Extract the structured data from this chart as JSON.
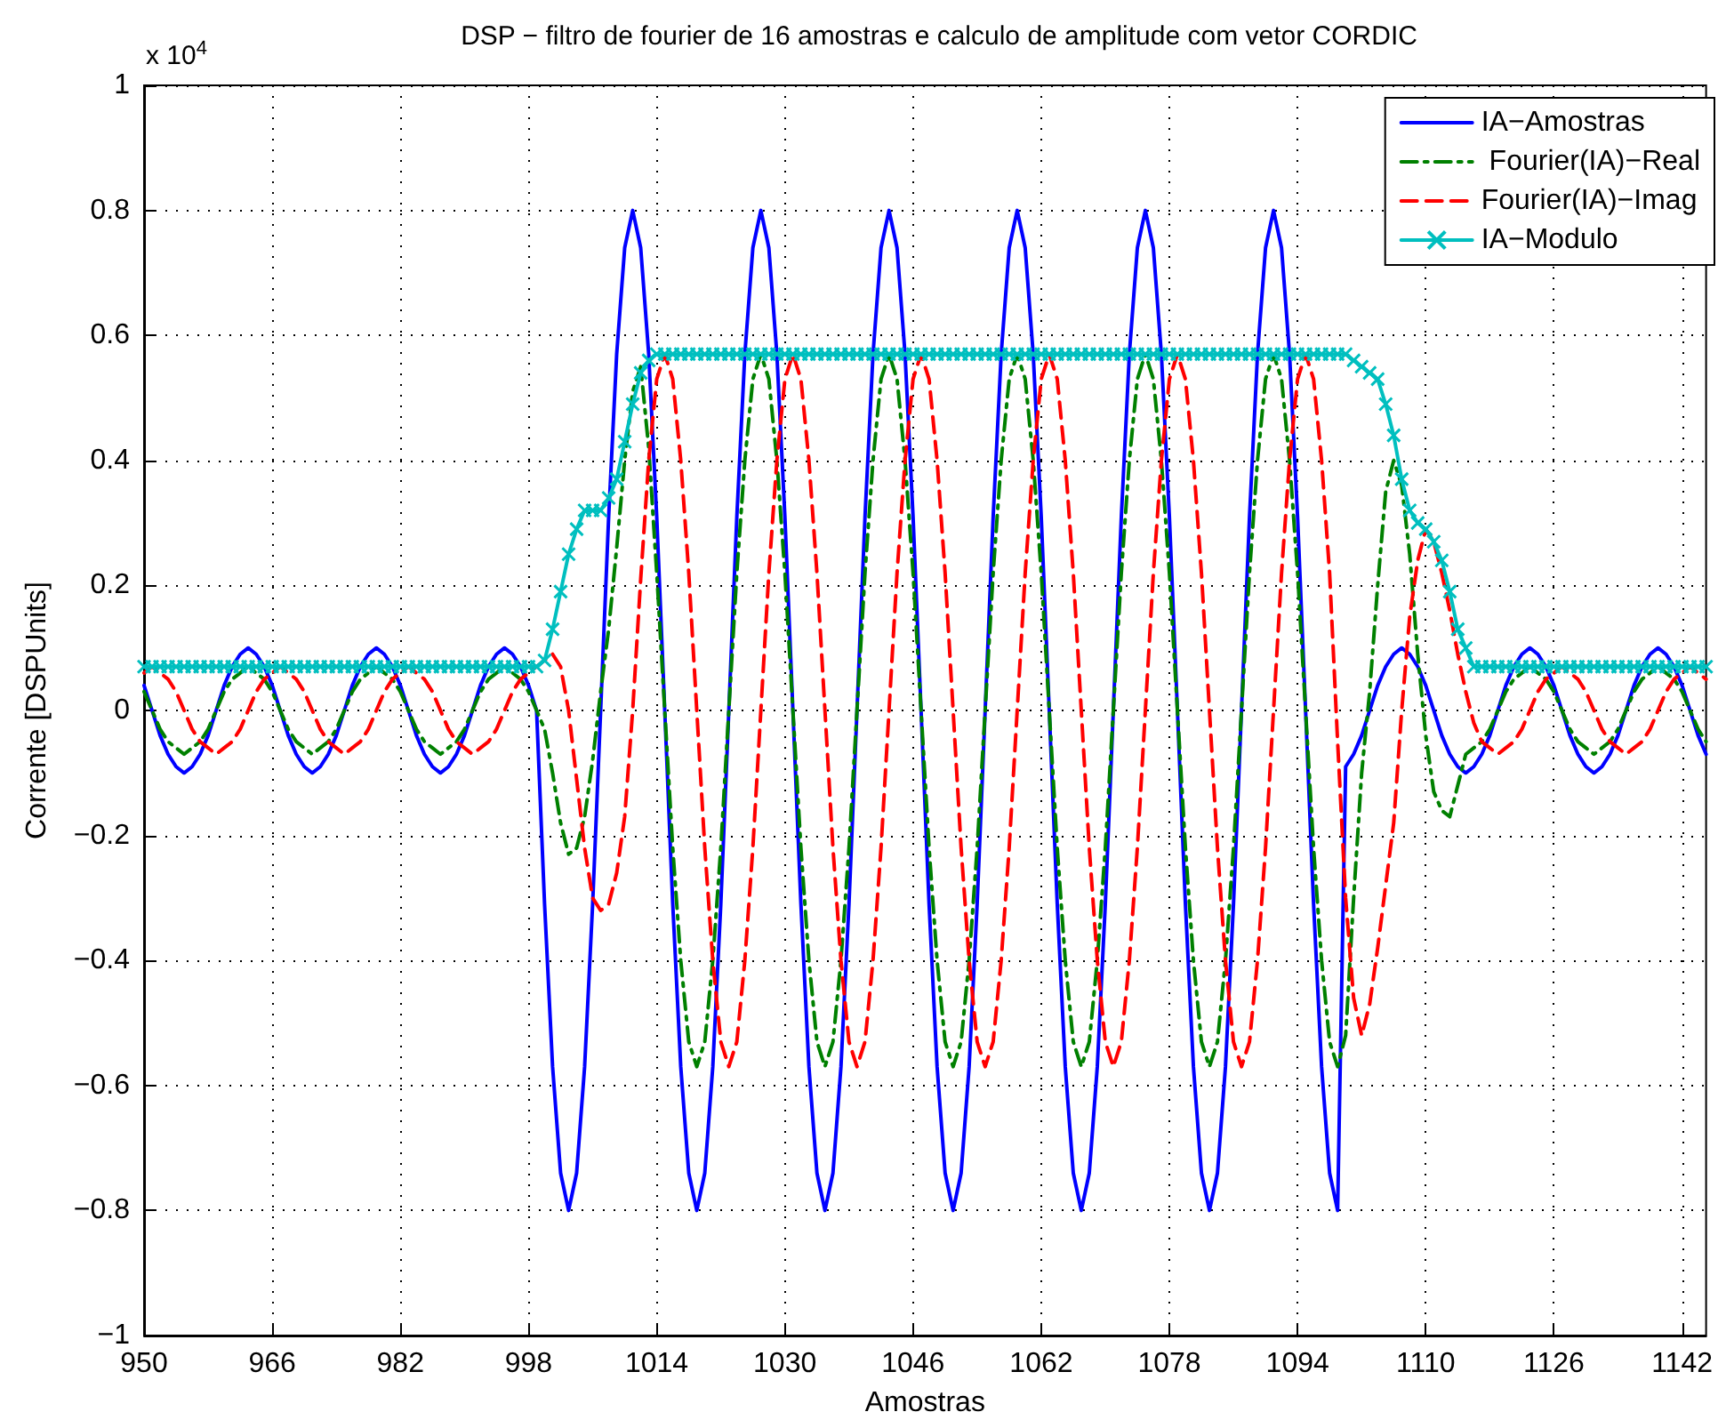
{
  "chart_data": {
    "type": "line",
    "title": "DSP − filtro de fourier de 16 amostras e calculo de amplitude com vetor CORDIC",
    "xlabel": "Amostras",
    "ylabel": "Corrente [DSPUnits]",
    "annotations": [
      "x 10$^{4}$"
    ],
    "xlim": [
      950,
      1145
    ],
    "xticks": [
      950,
      966,
      982,
      998,
      1014,
      1030,
      1046,
      1062,
      1078,
      1094,
      1110,
      1126,
      1142
    ],
    "ylim": [
      -1,
      1
    ],
    "yticks": [
      -1,
      -0.8,
      -0.6,
      -0.4,
      -0.2,
      0,
      0.2,
      0.4,
      0.6,
      0.8,
      1
    ],
    "grid": true,
    "legend": "top right",
    "x": [
      950,
      951,
      952,
      953,
      954,
      955,
      956,
      957,
      958,
      959,
      960,
      961,
      962,
      963,
      964,
      965,
      966,
      967,
      968,
      969,
      970,
      971,
      972,
      973,
      974,
      975,
      976,
      977,
      978,
      979,
      980,
      981,
      982,
      983,
      984,
      985,
      986,
      987,
      988,
      989,
      990,
      991,
      992,
      993,
      994,
      995,
      996,
      997,
      998,
      999,
      1000,
      1001,
      1002,
      1003,
      1004,
      1005,
      1006,
      1007,
      1008,
      1009,
      1010,
      1011,
      1012,
      1013,
      1014,
      1015,
      1016,
      1017,
      1018,
      1019,
      1020,
      1021,
      1022,
      1023,
      1024,
      1025,
      1026,
      1027,
      1028,
      1029,
      1030,
      1031,
      1032,
      1033,
      1034,
      1035,
      1036,
      1037,
      1038,
      1039,
      1040,
      1041,
      1042,
      1043,
      1044,
      1045,
      1046,
      1047,
      1048,
      1049,
      1050,
      1051,
      1052,
      1053,
      1054,
      1055,
      1056,
      1057,
      1058,
      1059,
      1060,
      1061,
      1062,
      1063,
      1064,
      1065,
      1066,
      1067,
      1068,
      1069,
      1070,
      1071,
      1072,
      1073,
      1074,
      1075,
      1076,
      1077,
      1078,
      1079,
      1080,
      1081,
      1082,
      1083,
      1084,
      1085,
      1086,
      1087,
      1088,
      1089,
      1090,
      1091,
      1092,
      1093,
      1094,
      1095,
      1096,
      1097,
      1098,
      1099,
      1100,
      1101,
      1102,
      1103,
      1104,
      1105,
      1106,
      1107,
      1108,
      1109,
      1110,
      1111,
      1112,
      1113,
      1114,
      1115,
      1116,
      1117,
      1118,
      1119,
      1120,
      1121,
      1122,
      1123,
      1124,
      1125,
      1126,
      1127,
      1128,
      1129,
      1130,
      1131,
      1132,
      1133,
      1134,
      1135,
      1136,
      1137,
      1138,
      1139,
      1140,
      1141,
      1142,
      1143,
      1144,
      1145
    ],
    "series": [
      {
        "name": "IA−Amostras",
        "color": "#0000ff",
        "line_style": "solid",
        "marker": "none",
        "values": [
          0.04,
          0,
          -0.04,
          -0.07,
          -0.09,
          -0.1,
          -0.09,
          -0.07,
          -0.04,
          0,
          0.04,
          0.07,
          0.09,
          0.1,
          0.09,
          0.07,
          0.04,
          0,
          -0.04,
          -0.07,
          -0.09,
          -0.1,
          -0.09,
          -0.07,
          -0.04,
          0,
          0.04,
          0.07,
          0.09,
          0.1,
          0.09,
          0.07,
          0.04,
          0,
          -0.04,
          -0.07,
          -0.09,
          -0.1,
          -0.09,
          -0.07,
          -0.04,
          0,
          0.04,
          0.07,
          0.09,
          0.1,
          0.09,
          0.07,
          0.04,
          0,
          -0.31,
          -0.57,
          -0.74,
          -0.8,
          -0.74,
          -0.57,
          -0.31,
          0,
          0.31,
          0.57,
          0.74,
          0.8,
          0.74,
          0.57,
          0.31,
          0,
          -0.31,
          -0.57,
          -0.74,
          -0.8,
          -0.74,
          -0.57,
          -0.31,
          0,
          0.31,
          0.57,
          0.74,
          0.8,
          0.74,
          0.57,
          0.31,
          0,
          -0.31,
          -0.57,
          -0.74,
          -0.8,
          -0.74,
          -0.57,
          -0.31,
          0,
          0.31,
          0.57,
          0.74,
          0.8,
          0.74,
          0.57,
          0.31,
          0,
          -0.31,
          -0.57,
          -0.74,
          -0.8,
          -0.74,
          -0.57,
          -0.31,
          0,
          0.31,
          0.57,
          0.74,
          0.8,
          0.74,
          0.57,
          0.31,
          0,
          -0.31,
          -0.57,
          -0.74,
          -0.8,
          -0.74,
          -0.57,
          -0.31,
          0,
          0.31,
          0.57,
          0.74,
          0.8,
          0.74,
          0.57,
          0.31,
          0,
          -0.31,
          -0.57,
          -0.74,
          -0.8,
          -0.74,
          -0.57,
          -0.31,
          0,
          0.31,
          0.57,
          0.74,
          0.8,
          0.74,
          0.57,
          0.31,
          0,
          -0.31,
          -0.57,
          -0.74,
          -0.8,
          -0.09,
          -0.07,
          -0.04,
          0,
          0.04,
          0.07,
          0.09,
          0.1,
          0.09,
          0.07,
          0.04,
          0,
          -0.04,
          -0.07,
          -0.09,
          -0.1,
          -0.09,
          -0.07,
          -0.04,
          0,
          0.04,
          0.07,
          0.09,
          0.1,
          0.09,
          0.07,
          0.04,
          0,
          -0.04,
          -0.07,
          -0.09,
          -0.1,
          -0.09,
          -0.07,
          -0.04,
          0,
          0.04,
          0.07,
          0.09,
          0.1,
          0.09,
          0.07,
          0.04,
          0,
          -0.04,
          -0.07
        ]
      },
      {
        "name": " Fourier(IA)−Real",
        "color": "#008000",
        "line_style": "dashdot",
        "marker": "none",
        "values": [
          0.03,
          0,
          -0.03,
          -0.05,
          -0.06,
          -0.07,
          -0.06,
          -0.05,
          -0.03,
          0,
          0.03,
          0.05,
          0.06,
          0.07,
          0.06,
          0.05,
          0.03,
          0,
          -0.03,
          -0.05,
          -0.06,
          -0.07,
          -0.06,
          -0.05,
          -0.03,
          0,
          0.03,
          0.05,
          0.06,
          0.07,
          0.06,
          0.05,
          0.03,
          0,
          -0.03,
          -0.05,
          -0.06,
          -0.07,
          -0.06,
          -0.05,
          -0.03,
          0,
          0.03,
          0.05,
          0.06,
          0.07,
          0.06,
          0.05,
          0.03,
          0,
          -0.03,
          -0.1,
          -0.18,
          -0.23,
          -0.22,
          -0.17,
          -0.08,
          0.03,
          0.13,
          0.26,
          0.4,
          0.51,
          0.55,
          0.42,
          0.22,
          0,
          -0.22,
          -0.4,
          -0.53,
          -0.57,
          -0.53,
          -0.4,
          -0.22,
          0,
          0.22,
          0.4,
          0.53,
          0.57,
          0.53,
          0.4,
          0.22,
          0,
          -0.22,
          -0.4,
          -0.53,
          -0.57,
          -0.53,
          -0.4,
          -0.22,
          0,
          0.22,
          0.4,
          0.53,
          0.57,
          0.53,
          0.4,
          0.22,
          0,
          -0.22,
          -0.4,
          -0.53,
          -0.57,
          -0.53,
          -0.4,
          -0.22,
          0,
          0.22,
          0.4,
          0.53,
          0.57,
          0.53,
          0.4,
          0.22,
          0,
          -0.22,
          -0.4,
          -0.53,
          -0.57,
          -0.53,
          -0.4,
          -0.22,
          0,
          0.22,
          0.4,
          0.53,
          0.57,
          0.53,
          0.4,
          0.22,
          0,
          -0.22,
          -0.4,
          -0.53,
          -0.57,
          -0.53,
          -0.4,
          -0.22,
          0,
          0.22,
          0.4,
          0.53,
          0.57,
          0.53,
          0.4,
          0.22,
          0,
          -0.22,
          -0.4,
          -0.53,
          -0.57,
          -0.52,
          -0.3,
          -0.1,
          0.03,
          0.2,
          0.35,
          0.4,
          0.36,
          0.25,
          0.09,
          -0.04,
          -0.13,
          -0.16,
          -0.17,
          -0.12,
          -0.07,
          -0.06,
          -0.05,
          -0.03,
          0,
          0.03,
          0.05,
          0.06,
          0.07,
          0.06,
          0.05,
          0.03,
          0,
          -0.03,
          -0.05,
          -0.06,
          -0.07,
          -0.06,
          -0.05,
          -0.03,
          0,
          0.03,
          0.05,
          0.06,
          0.07,
          0.06,
          0.05,
          0.03,
          0,
          -0.03,
          -0.05
        ]
      },
      {
        "name": "Fourier(IA)−Imag",
        "color": "#ff0000",
        "line_style": "dashed",
        "marker": "none",
        "values": [
          0.06,
          0.07,
          0.06,
          0.05,
          0.03,
          0,
          -0.03,
          -0.05,
          -0.06,
          -0.07,
          -0.06,
          -0.05,
          -0.03,
          0,
          0.03,
          0.05,
          0.06,
          0.07,
          0.06,
          0.05,
          0.03,
          0,
          -0.03,
          -0.05,
          -0.06,
          -0.07,
          -0.06,
          -0.05,
          -0.03,
          0,
          0.03,
          0.05,
          0.06,
          0.07,
          0.06,
          0.05,
          0.03,
          0,
          -0.03,
          -0.05,
          -0.06,
          -0.07,
          -0.06,
          -0.05,
          -0.03,
          0,
          0.03,
          0.05,
          0.06,
          0.07,
          0.08,
          0.09,
          0.07,
          0,
          -0.11,
          -0.22,
          -0.3,
          -0.32,
          -0.31,
          -0.26,
          -0.17,
          0,
          0.21,
          0.4,
          0.53,
          0.57,
          0.53,
          0.4,
          0.22,
          0,
          -0.22,
          -0.4,
          -0.53,
          -0.57,
          -0.53,
          -0.4,
          -0.22,
          0,
          0.22,
          0.4,
          0.53,
          0.57,
          0.53,
          0.4,
          0.22,
          0,
          -0.22,
          -0.4,
          -0.53,
          -0.57,
          -0.53,
          -0.4,
          -0.22,
          0,
          0.22,
          0.4,
          0.53,
          0.57,
          0.53,
          0.4,
          0.22,
          0,
          -0.22,
          -0.4,
          -0.53,
          -0.57,
          -0.53,
          -0.4,
          -0.22,
          0,
          0.22,
          0.4,
          0.53,
          0.57,
          0.53,
          0.4,
          0.22,
          0,
          -0.22,
          -0.4,
          -0.53,
          -0.57,
          -0.53,
          -0.4,
          -0.22,
          0,
          0.22,
          0.4,
          0.53,
          0.57,
          0.53,
          0.4,
          0.22,
          0,
          -0.22,
          -0.4,
          -0.53,
          -0.57,
          -0.53,
          -0.4,
          -0.22,
          0,
          0.22,
          0.4,
          0.53,
          0.57,
          0.53,
          0.4,
          0.22,
          -0.05,
          -0.3,
          -0.46,
          -0.52,
          -0.47,
          -0.38,
          -0.28,
          -0.18,
          0,
          0.15,
          0.24,
          0.29,
          0.27,
          0.22,
          0.16,
          0.09,
          0.03,
          -0.02,
          -0.05,
          -0.06,
          -0.07,
          -0.06,
          -0.05,
          -0.03,
          0,
          0.03,
          0.05,
          0.06,
          0.07,
          0.06,
          0.05,
          0.03,
          0,
          -0.03,
          -0.05,
          -0.06,
          -0.07,
          -0.06,
          -0.05,
          -0.03,
          0,
          0.03,
          0.05,
          0.06,
          0.07,
          0.06,
          0.05
        ]
      },
      {
        "name": "IA−Modulo",
        "color": "#00bfbf",
        "line_style": "solid",
        "marker": "cross",
        "values": [
          0.07,
          0.07,
          0.07,
          0.07,
          0.07,
          0.07,
          0.07,
          0.07,
          0.07,
          0.07,
          0.07,
          0.07,
          0.07,
          0.07,
          0.07,
          0.07,
          0.07,
          0.07,
          0.07,
          0.07,
          0.07,
          0.07,
          0.07,
          0.07,
          0.07,
          0.07,
          0.07,
          0.07,
          0.07,
          0.07,
          0.07,
          0.07,
          0.07,
          0.07,
          0.07,
          0.07,
          0.07,
          0.07,
          0.07,
          0.07,
          0.07,
          0.07,
          0.07,
          0.07,
          0.07,
          0.07,
          0.07,
          0.07,
          0.07,
          0.07,
          0.08,
          0.13,
          0.19,
          0.25,
          0.29,
          0.32,
          0.32,
          0.32,
          0.34,
          0.37,
          0.43,
          0.49,
          0.54,
          0.56,
          0.57,
          0.57,
          0.57,
          0.57,
          0.57,
          0.57,
          0.57,
          0.57,
          0.57,
          0.57,
          0.57,
          0.57,
          0.57,
          0.57,
          0.57,
          0.57,
          0.57,
          0.57,
          0.57,
          0.57,
          0.57,
          0.57,
          0.57,
          0.57,
          0.57,
          0.57,
          0.57,
          0.57,
          0.57,
          0.57,
          0.57,
          0.57,
          0.57,
          0.57,
          0.57,
          0.57,
          0.57,
          0.57,
          0.57,
          0.57,
          0.57,
          0.57,
          0.57,
          0.57,
          0.57,
          0.57,
          0.57,
          0.57,
          0.57,
          0.57,
          0.57,
          0.57,
          0.57,
          0.57,
          0.57,
          0.57,
          0.57,
          0.57,
          0.57,
          0.57,
          0.57,
          0.57,
          0.57,
          0.57,
          0.57,
          0.57,
          0.57,
          0.57,
          0.57,
          0.57,
          0.57,
          0.57,
          0.57,
          0.57,
          0.57,
          0.57,
          0.57,
          0.57,
          0.57,
          0.57,
          0.57,
          0.57,
          0.57,
          0.57,
          0.57,
          0.57,
          0.57,
          0.56,
          0.55,
          0.54,
          0.53,
          0.49,
          0.44,
          0.37,
          0.32,
          0.3,
          0.29,
          0.27,
          0.24,
          0.19,
          0.13,
          0.1,
          0.07,
          0.07,
          0.07,
          0.07,
          0.07,
          0.07,
          0.07,
          0.07,
          0.07,
          0.07,
          0.07,
          0.07,
          0.07,
          0.07,
          0.07,
          0.07,
          0.07,
          0.07,
          0.07,
          0.07,
          0.07,
          0.07,
          0.07,
          0.07,
          0.07,
          0.07,
          0.07,
          0.07,
          0.07,
          0.07
        ]
      }
    ]
  }
}
